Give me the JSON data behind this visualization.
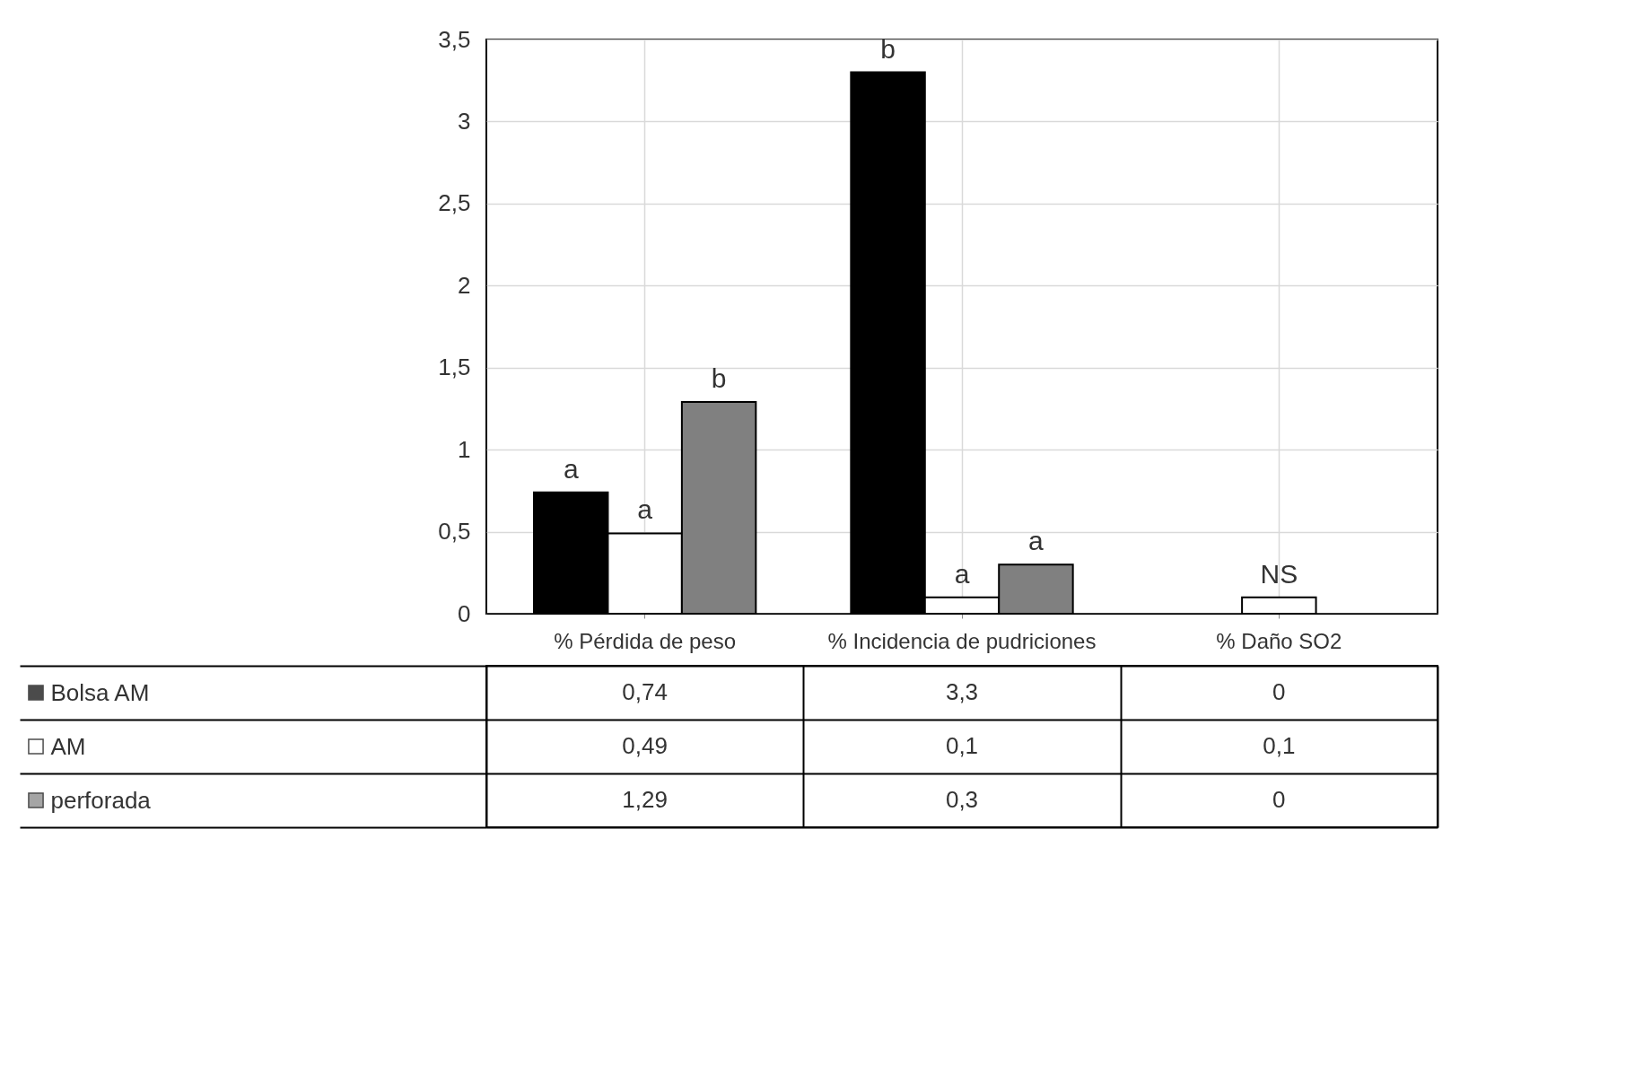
{
  "chart_data": {
    "type": "bar",
    "categories": [
      "% Pérdida de peso",
      "% Incidencia de pudriciones",
      "% Daño SO2"
    ],
    "series": [
      {
        "name": "Bolsa AM",
        "color": "#000000",
        "values": [
          0.74,
          3.3,
          0
        ],
        "value_labels": [
          "0,74",
          "3,3",
          "0"
        ]
      },
      {
        "name": "AM",
        "color": "#ffffff",
        "values": [
          0.49,
          0.1,
          0.1
        ],
        "value_labels": [
          "0,49",
          "0,1",
          "0,1"
        ]
      },
      {
        "name": "perforada",
        "color": "#808080",
        "values": [
          1.29,
          0.3,
          0
        ],
        "value_labels": [
          "1,29",
          "0,3",
          "0"
        ]
      }
    ],
    "ylim": [
      0,
      3.5
    ],
    "yticks": [
      0,
      {
        "value": 0.5,
        "label": "0,5"
      },
      1,
      {
        "value": 1.5,
        "label": "1,5"
      },
      2,
      {
        "value": 2.5,
        "label": "2,5"
      },
      3,
      {
        "value": 3.5,
        "label": "3,5"
      }
    ],
    "grid": true,
    "legend": "bottom left",
    "annotations": [
      "a",
      "a",
      "b",
      "b",
      "a",
      "a",
      "NS"
    ]
  }
}
